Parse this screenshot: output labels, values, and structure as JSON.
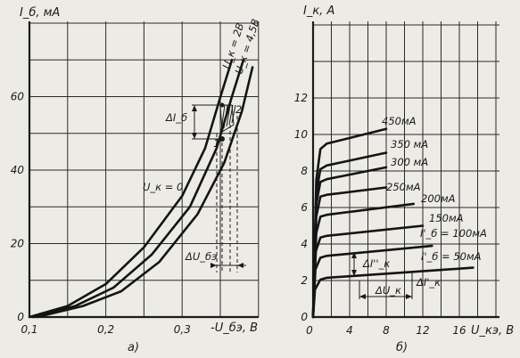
{
  "chart_data": [
    {
      "type": "line",
      "panel_label": "а)",
      "ylabel": "I_б, мА",
      "xlabel": "-U_бэ, В",
      "x_ticks": [
        "0,1",
        "0,2",
        "0,3"
      ],
      "y_ticks": [
        "0",
        "20",
        "40",
        "60"
      ],
      "xlim": [
        0.1,
        0.4
      ],
      "ylim": [
        0,
        80
      ],
      "grid": true,
      "series": [
        {
          "name": "U_к = 0",
          "points": [
            [
              0.1,
              0
            ],
            [
              0.15,
              3
            ],
            [
              0.2,
              9
            ],
            [
              0.25,
              19
            ],
            [
              0.3,
              33
            ],
            [
              0.33,
              46
            ],
            [
              0.35,
              60
            ],
            [
              0.365,
              70
            ]
          ]
        },
        {
          "name": "U_к = 2В",
          "points": [
            [
              0.105,
              0
            ],
            [
              0.16,
              3
            ],
            [
              0.21,
              8
            ],
            [
              0.26,
              17
            ],
            [
              0.31,
              30
            ],
            [
              0.345,
              46
            ],
            [
              0.365,
              60
            ],
            [
              0.38,
              70
            ]
          ]
        },
        {
          "name": "U_к = 4,5В",
          "points": [
            [
              0.11,
              0
            ],
            [
              0.17,
              3
            ],
            [
              0.22,
              7
            ],
            [
              0.27,
              15
            ],
            [
              0.32,
              28
            ],
            [
              0.355,
              42
            ],
            [
              0.378,
              56
            ],
            [
              0.392,
              68
            ]
          ]
        }
      ],
      "annotations": [
        "ΔI_б",
        "ΔU_бэ",
        "1",
        "2"
      ]
    },
    {
      "type": "line",
      "panel_label": "б)",
      "ylabel": "I_к, А",
      "xlabel": "U_кэ, В",
      "x_ticks": [
        "0",
        "4",
        "8",
        "12",
        "16"
      ],
      "y_ticks": [
        "0",
        "2",
        "4",
        "6",
        "8",
        "10",
        "12"
      ],
      "xlim": [
        0,
        20
      ],
      "ylim": [
        0,
        14
      ],
      "grid": true,
      "series": [
        {
          "name": "450мА",
          "points": [
            [
              0,
              0
            ],
            [
              0.35,
              7.5
            ],
            [
              0.8,
              9.2
            ],
            [
              1.5,
              9.5
            ],
            [
              8,
              10.3
            ]
          ]
        },
        {
          "name": "350 мА",
          "points": [
            [
              0,
              0
            ],
            [
              0.35,
              6.8
            ],
            [
              0.8,
              8.1
            ],
            [
              1.5,
              8.3
            ],
            [
              8,
              9.0
            ]
          ]
        },
        {
          "name": "300 мА",
          "points": [
            [
              0,
              0
            ],
            [
              0.35,
              6.2
            ],
            [
              0.8,
              7.4
            ],
            [
              1.5,
              7.55
            ],
            [
              8,
              8.2
            ]
          ]
        },
        {
          "name": "250мА",
          "points": [
            [
              0,
              0
            ],
            [
              0.35,
              5.5
            ],
            [
              0.8,
              6.6
            ],
            [
              1.5,
              6.7
            ],
            [
              8,
              7.1
            ]
          ]
        },
        {
          "name": "200мА",
          "points": [
            [
              0,
              0
            ],
            [
              0.35,
              4.6
            ],
            [
              0.8,
              5.5
            ],
            [
              1.5,
              5.6
            ],
            [
              11,
              6.2
            ]
          ]
        },
        {
          "name": "150мА",
          "points": [
            [
              0,
              0
            ],
            [
              0.3,
              3.6
            ],
            [
              0.8,
              4.35
            ],
            [
              1.5,
              4.45
            ],
            [
              12,
              5.0
            ]
          ]
        },
        {
          "name": "I'_б = 100мА",
          "points": [
            [
              0,
              0
            ],
            [
              0.25,
              2.6
            ],
            [
              0.8,
              3.25
            ],
            [
              1.5,
              3.35
            ],
            [
              13,
              3.9
            ]
          ]
        },
        {
          "name": "I'_б = 50мА",
          "points": [
            [
              0,
              0
            ],
            [
              0.2,
              1.5
            ],
            [
              0.8,
              2.05
            ],
            [
              1.5,
              2.15
            ],
            [
              17.5,
              2.7
            ]
          ]
        }
      ],
      "annotations": [
        "ΔI''_к",
        "ΔU_к",
        "ΔI'_к"
      ]
    }
  ]
}
